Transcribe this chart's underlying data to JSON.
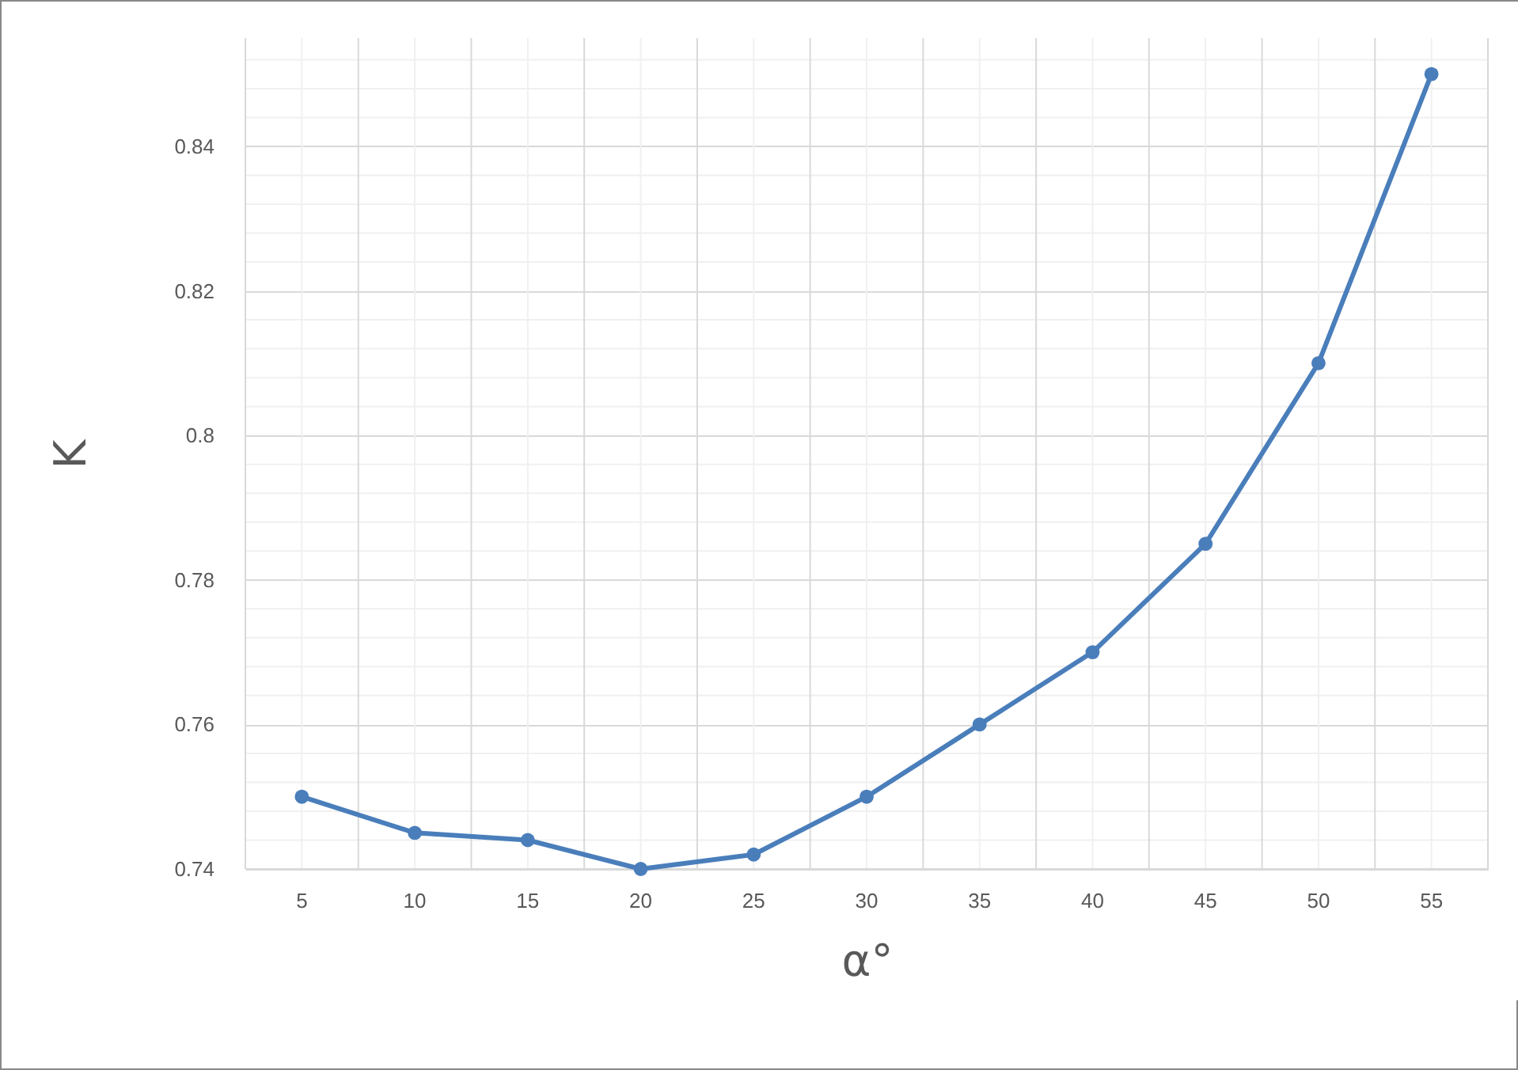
{
  "chart_data": {
    "type": "line",
    "xlabel": "α°",
    "ylabel": "K",
    "categories": [
      "5",
      "10",
      "15",
      "20",
      "25",
      "30",
      "35",
      "40",
      "45",
      "50",
      "55"
    ],
    "series": [
      {
        "color": "#4a7ebb",
        "values": [
          0.75,
          0.745,
          0.744,
          0.74,
          0.742,
          0.75,
          0.76,
          0.77,
          0.785,
          0.81,
          0.85
        ]
      }
    ],
    "ylim": [
      0.74,
      0.855
    ],
    "yticks": [
      0.74,
      0.76,
      0.78,
      0.8,
      0.82,
      0.84
    ],
    "grid": true,
    "marker": "circle",
    "line_style": "solid"
  }
}
